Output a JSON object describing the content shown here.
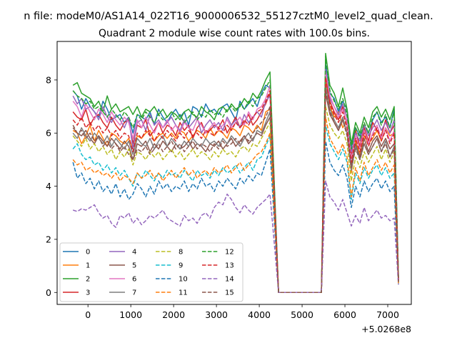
{
  "suptitle": "n file: modeM0/AS1A14_022T16_9000006532_55127cztM0_level2_quad_clean.",
  "chart_data": {
    "type": "line",
    "title": "Quadrant 2 module wise count rates with 100.0s bins.",
    "xlabel": "",
    "ylabel": "",
    "x_offset_label": "+5.0268e8",
    "xlim": [
      -720,
      7550
    ],
    "ylim": [
      -0.45,
      9.45
    ],
    "xticks": [
      0,
      1000,
      2000,
      3000,
      4000,
      5000,
      6000,
      7000
    ],
    "yticks": [
      0,
      2,
      4,
      6,
      8
    ],
    "grid": false,
    "legend": {
      "placement": "lower-left",
      "columns": 4
    },
    "x": [
      -350,
      -250,
      -150,
      -50,
      50,
      150,
      250,
      350,
      450,
      550,
      650,
      750,
      850,
      950,
      1050,
      1150,
      1250,
      1350,
      1450,
      1550,
      1650,
      1750,
      1850,
      1950,
      2050,
      2150,
      2250,
      2350,
      2450,
      2550,
      2650,
      2750,
      2850,
      2950,
      3050,
      3150,
      3250,
      3350,
      3450,
      3550,
      3650,
      3750,
      3850,
      3950,
      4050,
      4150,
      4250,
      4450,
      4550,
      4650,
      4750,
      4850,
      4950,
      5050,
      5150,
      5250,
      5350,
      5450,
      5550,
      5650,
      5750,
      5850,
      5950,
      6050,
      6150,
      6250,
      6350,
      6450,
      6550,
      6650,
      6750,
      6850,
      6950,
      7050,
      7150,
      7250
    ],
    "series": [
      {
        "name": "0",
        "color": "#1f77b4",
        "dash": "solid",
        "base": [
          7.6,
          7.4,
          6.9,
          7.3,
          7.0,
          6.8,
          6.6,
          7.2,
          6.9,
          6.5,
          6.6,
          6.7,
          6.4,
          6.6,
          6.0,
          6.7,
          6.6,
          6.5,
          6.8,
          6.3,
          6.9,
          6.6,
          6.4,
          6.7,
          6.9,
          6.6,
          6.8,
          6.3,
          7.0,
          6.9,
          6.6,
          7.1,
          6.8,
          6.9,
          6.7,
          7.0,
          7.1,
          6.8,
          6.5,
          7.2,
          6.9,
          7.1,
          7.3,
          7.0,
          7.5,
          7.8,
          7.7
        ],
        "tail": [
          8.6,
          7.5,
          7.3,
          6.8,
          7.2,
          6.9,
          5.5,
          6.2,
          5.9,
          6.3,
          6.0,
          6.5,
          6.8,
          6.4,
          6.6,
          6.2,
          6.9,
          0.5
        ]
      },
      {
        "name": "1",
        "color": "#ff7f0e",
        "dash": "solid",
        "base": [
          6.1,
          6.0,
          5.6,
          5.9,
          6.3,
          5.7,
          6.1,
          5.8,
          5.5,
          6.0,
          5.9,
          5.7,
          5.6,
          5.8,
          5.4,
          5.9,
          5.8,
          6.0,
          6.1,
          5.7,
          5.9,
          6.0,
          5.8,
          6.0,
          5.8,
          6.1,
          6.0,
          5.7,
          5.9,
          6.1,
          6.0,
          5.8,
          6.2,
          5.9,
          6.1,
          6.0,
          5.8,
          6.2,
          6.1,
          5.9,
          6.3,
          6.2,
          6.0,
          6.3,
          6.1,
          6.8,
          6.9
        ],
        "tail": [
          8.0,
          7.0,
          6.6,
          6.8,
          6.2,
          6.5,
          4.5,
          5.7,
          5.2,
          5.9,
          5.6,
          5.8,
          6.1,
          5.7,
          6.2,
          5.9,
          6.0,
          0.45
        ]
      },
      {
        "name": "2",
        "color": "#2ca02c",
        "dash": "solid",
        "base": [
          7.8,
          7.9,
          7.5,
          7.4,
          7.3,
          7.0,
          7.2,
          6.8,
          7.4,
          6.9,
          7.1,
          6.8,
          6.9,
          7.0,
          6.7,
          7.0,
          6.6,
          6.9,
          6.8,
          7.0,
          6.7,
          6.9,
          6.6,
          6.8,
          6.7,
          6.5,
          6.8,
          6.9,
          6.7,
          6.6,
          7.0,
          6.8,
          6.7,
          6.5,
          6.9,
          7.0,
          6.8,
          7.1,
          6.9,
          7.0,
          7.3,
          7.1,
          7.5,
          7.3,
          7.6,
          8.0,
          8.3
        ],
        "tail": [
          9.0,
          7.8,
          7.5,
          7.0,
          7.7,
          6.9,
          5.6,
          6.4,
          6.0,
          6.6,
          6.2,
          6.8,
          7.0,
          6.6,
          6.9,
          6.5,
          7.0,
          0.6
        ]
      },
      {
        "name": "3",
        "color": "#d62728",
        "dash": "solid",
        "base": [
          6.8,
          6.6,
          6.5,
          6.9,
          6.3,
          6.6,
          6.7,
          6.4,
          6.2,
          6.6,
          6.3,
          6.1,
          6.4,
          6.5,
          5.6,
          6.3,
          6.2,
          6.5,
          5.9,
          6.1,
          6.4,
          6.0,
          6.3,
          6.2,
          5.9,
          6.4,
          6.1,
          6.3,
          5.8,
          6.2,
          6.4,
          6.0,
          6.1,
          6.3,
          6.2,
          6.5,
          6.0,
          6.3,
          6.6,
          6.2,
          6.4,
          6.7,
          6.3,
          6.5,
          6.8,
          7.1,
          7.5
        ],
        "tail": [
          8.2,
          7.2,
          6.8,
          6.5,
          7.0,
          6.3,
          5.2,
          6.1,
          5.5,
          6.2,
          5.7,
          6.4,
          6.1,
          5.9,
          6.5,
          6.0,
          6.3,
          0.5
        ]
      },
      {
        "name": "4",
        "color": "#9467bd",
        "dash": "solid",
        "base": [
          7.4,
          7.1,
          7.3,
          6.9,
          7.0,
          6.8,
          6.5,
          7.0,
          6.6,
          6.4,
          6.7,
          6.5,
          6.2,
          6.6,
          5.4,
          6.4,
          6.5,
          6.1,
          6.7,
          6.3,
          6.5,
          6.2,
          6.4,
          6.6,
          6.3,
          6.1,
          6.5,
          6.2,
          6.4,
          6.6,
          6.0,
          6.3,
          6.5,
          6.2,
          6.4,
          6.1,
          6.6,
          6.3,
          6.5,
          6.2,
          6.7,
          6.4,
          6.6,
          6.8,
          6.6,
          7.2,
          7.4
        ],
        "tail": [
          8.4,
          7.3,
          7.0,
          6.7,
          7.1,
          6.6,
          5.3,
          6.0,
          5.7,
          6.3,
          5.9,
          6.2,
          6.5,
          6.1,
          6.4,
          6.0,
          6.5,
          0.5
        ]
      },
      {
        "name": "5",
        "color": "#8c564b",
        "dash": "solid",
        "base": [
          6.2,
          6.0,
          5.9,
          6.1,
          5.8,
          5.6,
          5.9,
          5.7,
          5.5,
          5.8,
          5.6,
          5.4,
          5.7,
          5.5,
          5.0,
          5.6,
          5.5,
          5.7,
          5.3,
          5.6,
          5.4,
          5.7,
          5.5,
          5.3,
          5.6,
          5.4,
          5.5,
          5.7,
          5.4,
          5.6,
          5.5,
          5.3,
          5.6,
          5.5,
          5.7,
          5.4,
          5.6,
          5.8,
          5.5,
          5.7,
          5.9,
          5.6,
          5.8,
          6.0,
          5.9,
          6.3,
          6.6
        ],
        "tail": [
          7.5,
          6.7,
          6.4,
          6.1,
          6.5,
          6.0,
          4.8,
          5.6,
          5.1,
          5.8,
          5.3,
          5.7,
          5.9,
          5.5,
          5.8,
          5.4,
          5.6,
          0.4
        ]
      },
      {
        "name": "6",
        "color": "#e377c2",
        "dash": "solid",
        "base": [
          7.2,
          7.0,
          6.6,
          7.1,
          6.8,
          6.5,
          6.9,
          6.7,
          6.4,
          6.8,
          6.5,
          6.3,
          6.6,
          6.4,
          5.8,
          6.5,
          6.2,
          6.6,
          6.3,
          6.0,
          6.4,
          6.2,
          6.5,
          6.1,
          6.3,
          6.0,
          6.4,
          6.2,
          6.1,
          6.5,
          6.3,
          6.0,
          6.2,
          6.4,
          6.1,
          6.3,
          6.5,
          6.2,
          6.4,
          6.6,
          6.3,
          6.8,
          6.5,
          6.9,
          7.0,
          7.3,
          7.8
        ],
        "tail": [
          8.3,
          7.4,
          7.0,
          6.6,
          6.9,
          6.4,
          5.0,
          5.9,
          5.4,
          6.1,
          5.6,
          6.0,
          6.3,
          5.8,
          6.2,
          5.7,
          6.1,
          0.5
        ]
      },
      {
        "name": "7",
        "color": "#7f7f7f",
        "dash": "solid",
        "base": [
          6.0,
          5.8,
          6.2,
          5.9,
          5.7,
          6.0,
          5.8,
          5.6,
          5.9,
          5.5,
          5.8,
          5.6,
          5.4,
          5.7,
          5.2,
          5.8,
          5.6,
          5.5,
          5.8,
          5.4,
          5.7,
          5.9,
          5.5,
          5.8,
          5.6,
          5.4,
          5.7,
          5.5,
          5.8,
          5.6,
          5.5,
          5.8,
          5.6,
          5.7,
          5.5,
          5.8,
          5.6,
          5.9,
          5.7,
          5.5,
          5.8,
          6.0,
          5.7,
          6.1,
          6.0,
          6.4,
          6.8
        ],
        "tail": [
          7.8,
          6.9,
          6.5,
          6.2,
          6.6,
          6.0,
          4.6,
          5.5,
          5.0,
          5.6,
          5.2,
          5.5,
          5.8,
          5.3,
          5.7,
          5.1,
          5.5,
          0.45
        ]
      },
      {
        "name": "8",
        "color": "#bcbd22",
        "dash": "dashed",
        "base": [
          5.9,
          5.7,
          5.5,
          5.8,
          5.4,
          5.6,
          5.3,
          5.5,
          5.2,
          5.4,
          5.0,
          5.3,
          5.1,
          5.4,
          4.8,
          5.3,
          5.2,
          5.0,
          5.3,
          5.1,
          5.3,
          5.0,
          5.2,
          5.4,
          5.1,
          5.3,
          5.0,
          5.2,
          5.4,
          5.1,
          5.3,
          5.2,
          5.0,
          5.3,
          5.1,
          5.4,
          5.2,
          5.3,
          5.1,
          5.4,
          5.5,
          5.3,
          5.6,
          5.5,
          5.8,
          6.1,
          6.4
        ],
        "tail": [
          7.0,
          6.3,
          6.0,
          5.8,
          6.1,
          5.6,
          4.2,
          5.1,
          4.7,
          5.3,
          4.9,
          5.2,
          5.5,
          5.0,
          5.4,
          4.9,
          5.3,
          0.4
        ]
      },
      {
        "name": "9",
        "color": "#17becf",
        "dash": "dashed",
        "base": [
          5.4,
          5.6,
          5.2,
          5.0,
          5.1,
          4.8,
          4.9,
          4.6,
          4.8,
          4.5,
          4.7,
          4.4,
          4.6,
          4.3,
          4.0,
          4.5,
          4.3,
          4.6,
          4.4,
          4.2,
          4.5,
          4.3,
          4.6,
          4.4,
          4.5,
          4.3,
          4.6,
          4.4,
          4.2,
          4.6,
          4.4,
          4.5,
          4.3,
          4.6,
          4.4,
          4.7,
          4.5,
          4.6,
          4.8,
          4.5,
          4.7,
          4.9,
          4.6,
          5.0,
          5.1,
          5.5,
          5.9
        ],
        "tail": [
          6.3,
          5.6,
          5.3,
          5.0,
          5.4,
          4.9,
          3.5,
          4.5,
          4.1,
          4.7,
          4.3,
          4.6,
          4.8,
          4.4,
          4.7,
          4.3,
          4.5,
          0.35
        ]
      },
      {
        "name": "10",
        "color": "#1f77b4",
        "dash": "dashed",
        "base": [
          4.9,
          4.3,
          4.5,
          4.1,
          4.3,
          3.9,
          4.2,
          3.8,
          4.0,
          3.7,
          4.1,
          3.6,
          3.9,
          3.5,
          3.7,
          4.1,
          3.9,
          3.6,
          4.0,
          3.7,
          4.2,
          3.9,
          4.1,
          3.8,
          4.0,
          3.9,
          4.2,
          3.8,
          4.1,
          3.9,
          4.3,
          4.0,
          4.1,
          3.8,
          4.2,
          4.0,
          4.3,
          4.1,
          3.9,
          4.3,
          4.1,
          4.4,
          4.2,
          4.5,
          4.4,
          4.9,
          5.4
        ],
        "tail": [
          5.7,
          4.9,
          4.6,
          4.4,
          4.8,
          4.3,
          3.2,
          4.0,
          3.6,
          4.2,
          3.8,
          4.1,
          4.3,
          3.9,
          4.2,
          3.8,
          4.0,
          0.3
        ]
      },
      {
        "name": "11",
        "color": "#ff7f0e",
        "dash": "dashed",
        "base": [
          5.0,
          4.8,
          4.9,
          4.6,
          4.7,
          4.5,
          4.6,
          4.4,
          4.5,
          4.3,
          4.5,
          4.2,
          4.4,
          4.3,
          4.1,
          4.5,
          4.3,
          4.4,
          4.6,
          4.3,
          4.5,
          4.2,
          4.4,
          4.6,
          4.3,
          4.5,
          4.7,
          4.4,
          4.6,
          4.3,
          4.5,
          4.6,
          4.4,
          4.7,
          4.5,
          4.6,
          4.8,
          4.5,
          4.7,
          4.9,
          4.6,
          4.8,
          5.0,
          5.2,
          5.3,
          5.6,
          6.0
        ],
        "tail": [
          6.6,
          5.8,
          5.5,
          5.2,
          5.6,
          5.1,
          3.6,
          4.7,
          4.2,
          4.9,
          4.4,
          4.7,
          5.0,
          4.6,
          4.9,
          4.5,
          4.8,
          0.35
        ]
      },
      {
        "name": "12",
        "color": "#2ca02c",
        "dash": "dashed",
        "base": [
          7.6,
          7.4,
          7.3,
          7.1,
          7.2,
          6.9,
          7.0,
          6.8,
          6.6,
          6.9,
          6.7,
          6.5,
          6.8,
          6.6,
          6.2,
          6.7,
          6.5,
          6.8,
          6.6,
          6.4,
          6.7,
          6.5,
          6.6,
          6.8,
          6.5,
          6.7,
          6.4,
          6.6,
          6.8,
          6.5,
          6.7,
          6.6,
          6.9,
          6.7,
          6.8,
          6.6,
          6.9,
          7.0,
          6.8,
          7.1,
          6.9,
          7.2,
          7.0,
          7.3,
          7.4,
          7.7,
          8.0
        ],
        "tail": [
          8.9,
          7.6,
          7.2,
          6.9,
          7.3,
          6.7,
          5.4,
          6.2,
          5.8,
          6.4,
          6.0,
          6.6,
          6.8,
          6.3,
          6.7,
          6.2,
          6.8,
          0.55
        ]
      },
      {
        "name": "13",
        "color": "#d62728",
        "dash": "dashed",
        "base": [
          6.5,
          6.3,
          6.6,
          6.2,
          6.4,
          6.1,
          6.3,
          6.0,
          6.2,
          5.9,
          6.1,
          5.8,
          6.0,
          5.9,
          5.3,
          6.0,
          5.8,
          6.1,
          5.9,
          5.7,
          6.0,
          5.8,
          6.1,
          5.9,
          5.7,
          6.0,
          5.8,
          6.1,
          5.9,
          6.0,
          5.8,
          6.1,
          6.0,
          5.9,
          6.2,
          6.0,
          6.3,
          6.1,
          6.4,
          6.2,
          6.5,
          6.3,
          6.6,
          6.8,
          6.9,
          7.2,
          7.6
        ],
        "tail": [
          8.1,
          7.1,
          6.7,
          6.4,
          6.8,
          6.2,
          4.9,
          5.8,
          5.3,
          6.0,
          5.5,
          5.9,
          6.2,
          5.7,
          6.1,
          5.6,
          6.0,
          0.45
        ]
      },
      {
        "name": "14",
        "color": "#9467bd",
        "dash": "dashed",
        "base": [
          3.1,
          3.05,
          3.15,
          3.1,
          3.2,
          3.3,
          3.0,
          2.8,
          2.9,
          2.6,
          2.45,
          2.9,
          2.8,
          3.0,
          2.6,
          2.8,
          2.55,
          2.7,
          2.9,
          2.8,
          2.95,
          3.1,
          2.8,
          2.7,
          2.6,
          2.5,
          2.9,
          2.7,
          2.8,
          2.6,
          2.9,
          3.0,
          2.8,
          3.2,
          3.4,
          3.3,
          3.7,
          3.5,
          3.2,
          3.0,
          3.3,
          3.1,
          2.95,
          3.2,
          3.35,
          3.5,
          3.7
        ],
        "tail": [
          4.2,
          3.6,
          3.4,
          3.1,
          3.5,
          3.0,
          2.5,
          2.9,
          2.6,
          3.2,
          2.7,
          2.9,
          3.1,
          2.8,
          2.9,
          2.7,
          2.8,
          0.3
        ]
      },
      {
        "name": "15",
        "color": "#8c564b",
        "dash": "dashed",
        "base": [
          6.3,
          6.0,
          6.1,
          5.8,
          6.0,
          5.7,
          5.9,
          5.5,
          5.7,
          5.4,
          5.6,
          5.3,
          5.5,
          5.2,
          5.0,
          5.4,
          5.3,
          5.5,
          5.2,
          5.4,
          5.6,
          5.3,
          5.5,
          5.7,
          5.4,
          5.6,
          5.3,
          5.5,
          5.7,
          5.4,
          5.6,
          5.5,
          5.3,
          5.6,
          5.4,
          5.7,
          5.5,
          5.6,
          5.8,
          5.6,
          5.9,
          5.7,
          6.0,
          6.2,
          6.4,
          6.6,
          7.0
        ],
        "tail": [
          7.6,
          6.8,
          6.4,
          6.1,
          6.5,
          5.9,
          4.7,
          5.4,
          5.0,
          5.6,
          5.2,
          5.5,
          5.8,
          5.3,
          5.6,
          5.1,
          5.4,
          0.4
        ]
      }
    ]
  }
}
